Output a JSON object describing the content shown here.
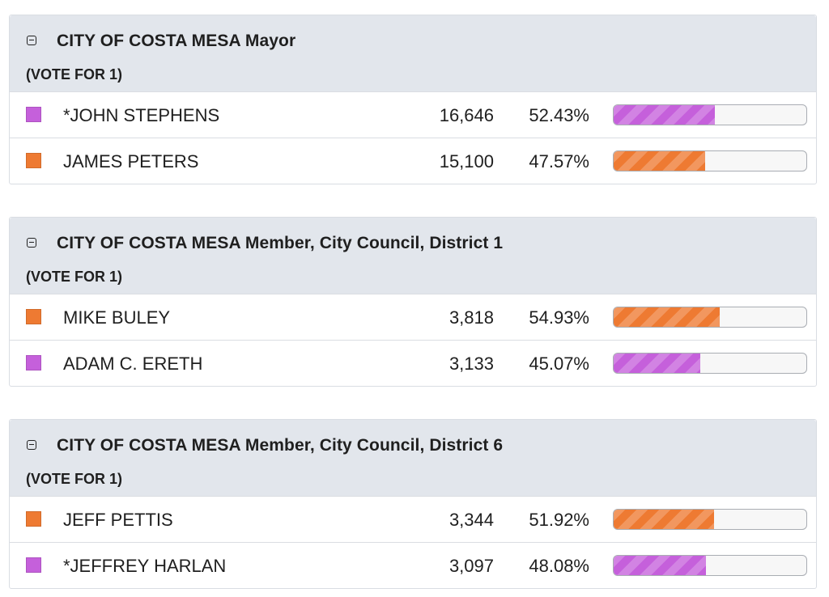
{
  "races": [
    {
      "title": "CITY OF COSTA MESA Mayor",
      "vote_for": "(VOTE FOR 1)",
      "candidates": [
        {
          "name": "*JOHN STEPHENS",
          "votes": "16,646",
          "percent_label": "52.43%",
          "percent": 52.43,
          "color": "purple",
          "color_hex": "#c560db"
        },
        {
          "name": "JAMES PETERS",
          "votes": "15,100",
          "percent_label": "47.57%",
          "percent": 47.57,
          "color": "orange",
          "color_hex": "#ee7a32"
        }
      ]
    },
    {
      "title": "CITY OF COSTA MESA Member, City Council, District 1",
      "vote_for": "(VOTE FOR 1)",
      "candidates": [
        {
          "name": "MIKE BULEY",
          "votes": "3,818",
          "percent_label": "54.93%",
          "percent": 54.93,
          "color": "orange",
          "color_hex": "#ee7a32"
        },
        {
          "name": "ADAM C. ERETH",
          "votes": "3,133",
          "percent_label": "45.07%",
          "percent": 45.07,
          "color": "purple",
          "color_hex": "#c560db"
        }
      ]
    },
    {
      "title": "CITY OF COSTA MESA Member, City Council, District 6",
      "vote_for": "(VOTE FOR 1)",
      "candidates": [
        {
          "name": "JEFF PETTIS",
          "votes": "3,344",
          "percent_label": "51.92%",
          "percent": 51.92,
          "color": "orange",
          "color_hex": "#ee7a32"
        },
        {
          "name": "*JEFFREY HARLAN",
          "votes": "3,097",
          "percent_label": "48.08%",
          "percent": 48.08,
          "color": "purple",
          "color_hex": "#c560db"
        }
      ]
    }
  ],
  "icons": {
    "collapse": "collapse-minus-icon"
  }
}
